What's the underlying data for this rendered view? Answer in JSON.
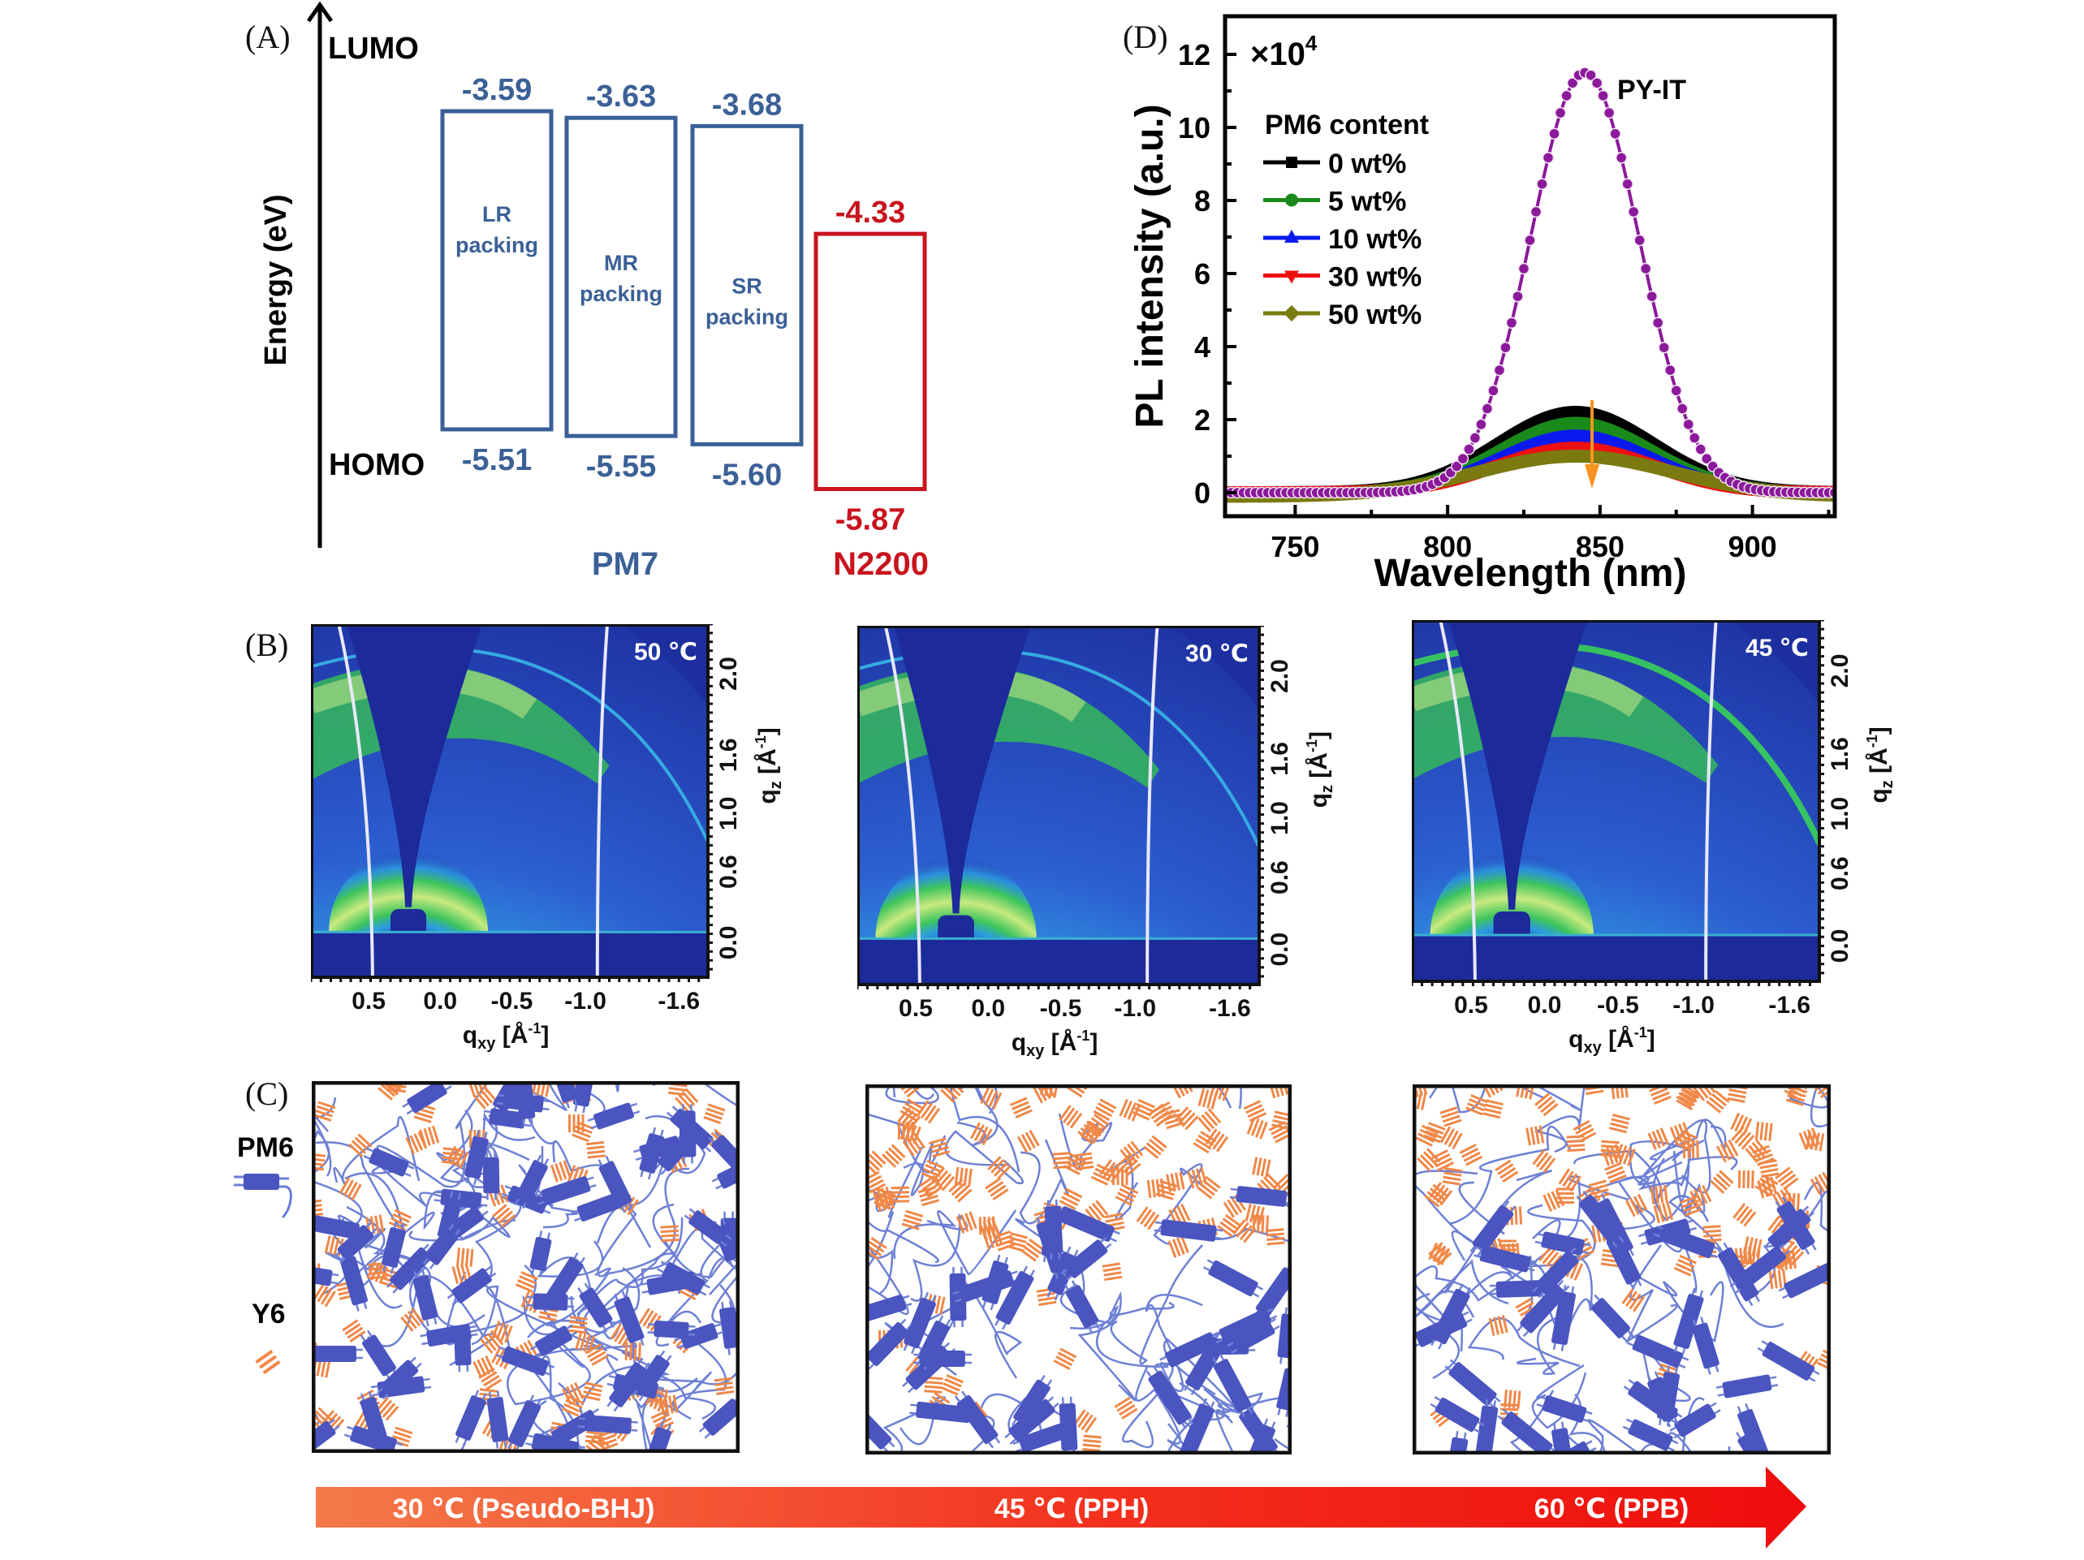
{
  "figure": {
    "panel_labels": [
      "(A)",
      "(B)",
      "(C)",
      "(D)"
    ]
  },
  "panel_a": {
    "y_axis_label": "Energy (eV)",
    "lumo_label": "LUMO",
    "homo_label": "HOMO",
    "colors": {
      "pm7": "#3b6096",
      "n2200": "#c8141e"
    },
    "materials": [
      {
        "name": "LR packing",
        "line1": "LR",
        "line2": "packing",
        "lumo": "-3.59",
        "homo": "-5.51",
        "group": "pm7"
      },
      {
        "name": "MR packing",
        "line1": "MR",
        "line2": "packing",
        "lumo": "-3.63",
        "homo": "-5.55",
        "group": "pm7"
      },
      {
        "name": "SR packing",
        "line1": "SR",
        "line2": "packing",
        "lumo": "-3.68",
        "homo": "-5.60",
        "group": "pm7"
      },
      {
        "name": "N2200",
        "line1": "",
        "line2": "",
        "lumo": "-4.33",
        "homo": "-5.87",
        "group": "n2200"
      }
    ],
    "group_labels": {
      "pm7": "PM7",
      "n2200": "N2200"
    }
  },
  "panel_b": {
    "maps": [
      {
        "temperature": "50 ℃"
      },
      {
        "temperature": "30 ℃"
      },
      {
        "temperature": "45 ℃"
      }
    ],
    "x_ticks": [
      "0.5",
      "0.0",
      "-0.5",
      "-1.0",
      "-1.6"
    ],
    "y_ticks": [
      "0.0",
      "0.6",
      "1.0",
      "1.6",
      "2.0"
    ],
    "x_label_main": "q",
    "x_label_sub": "xy",
    "x_label_unit": " [Å",
    "x_label_sup": "-1",
    "x_label_close": "]",
    "y_label_main": "q",
    "y_label_sub": "z",
    "y_label_unit": " [Å",
    "y_label_sup": "-1",
    "y_label_close": "]"
  },
  "panel_c": {
    "legend": {
      "pm6": "PM6",
      "y6": "Y6"
    },
    "colors": {
      "pm6": "#4a55c0",
      "y6": "#f08848"
    },
    "arrow": {
      "labels": [
        "30 ℃ (Pseudo-BHJ)",
        "45 ℃ (PPH)",
        "60 ℃ (PPB)"
      ],
      "color_start": "#f47a4a",
      "color_end": "#ee0c0c"
    }
  },
  "chart_data": {
    "type": "line",
    "title": "",
    "xlabel": "Wavelength (nm)",
    "ylabel": "PL intensity (a.u.)",
    "y_multiplier": "×10",
    "y_multiplier_exp": "4",
    "xlim": [
      727,
      927
    ],
    "ylim": [
      -0.5,
      12.8
    ],
    "x_ticks": [
      750,
      800,
      850,
      900
    ],
    "y_ticks": [
      0,
      2,
      4,
      6,
      8,
      10,
      12
    ],
    "legend_title": "PM6 content",
    "legend_position": "top-left",
    "annotation": "PY-IT",
    "arrow_annotation": "decreasing intensity with PM6 content (orange down arrow at ~842 nm)",
    "series": [
      {
        "name": "PY-IT",
        "color": "#8b1a9a",
        "marker": "circle-open",
        "peak_x": 845,
        "peak_y": 11.5,
        "fwhm": 42,
        "baseline": 0.0,
        "in_legend": false
      },
      {
        "name": "0 wt%",
        "color": "#000000",
        "marker": "square",
        "peak_x": 842,
        "peak_y": 2.2,
        "fwhm": 60,
        "baseline": 0.0,
        "in_legend": true
      },
      {
        "name": "5 wt%",
        "color": "#1a8a1a",
        "marker": "circle",
        "peak_x": 842,
        "peak_y": 1.9,
        "fwhm": 58,
        "baseline": 0.0,
        "in_legend": true
      },
      {
        "name": "10 wt%",
        "color": "#0a1aee",
        "marker": "triangle-up",
        "peak_x": 842,
        "peak_y": 1.55,
        "fwhm": 58,
        "baseline": 0.0,
        "in_legend": true
      },
      {
        "name": "30 wt%",
        "color": "#ee1010",
        "marker": "triangle-down",
        "peak_x": 842,
        "peak_y": 1.22,
        "fwhm": 60,
        "baseline": 0.0,
        "in_legend": true
      },
      {
        "name": "50 wt%",
        "color": "#7a7a10",
        "marker": "diamond",
        "peak_x": 842,
        "peak_y": 1.0,
        "fwhm": 75,
        "baseline": -0.1,
        "in_legend": true
      }
    ]
  }
}
